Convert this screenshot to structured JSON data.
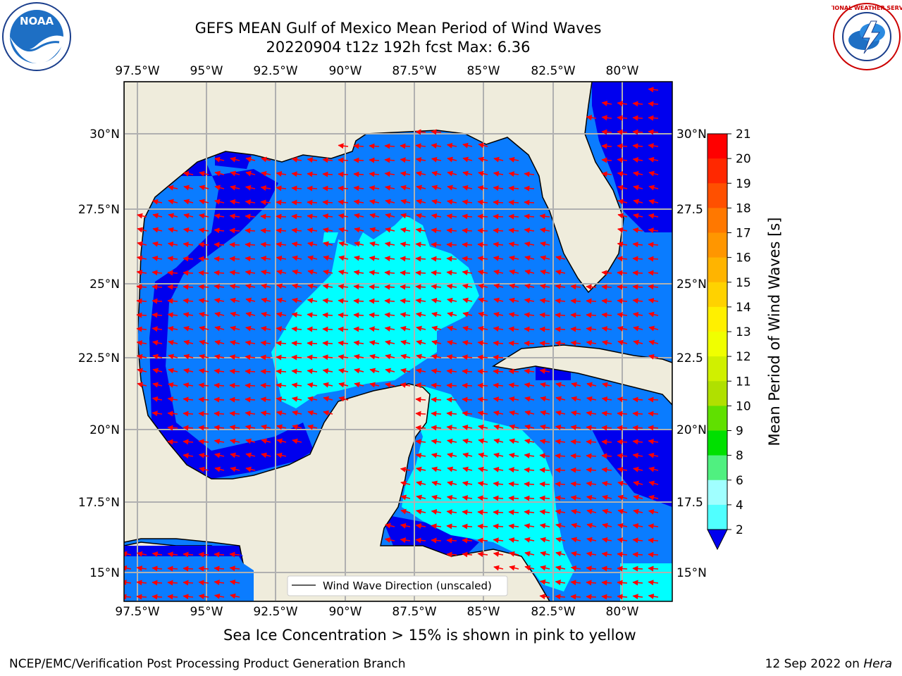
{
  "title": {
    "line1": "GEFS MEAN Gulf of Mexico Mean Period of Wind Waves",
    "line2": "20220904 t12z 192h fcst   Max: 6.36"
  },
  "map": {
    "lon_labels": [
      "97.5°W",
      "95°W",
      "92.5°W",
      "90°W",
      "87.5°W",
      "85°W",
      "82.5°W",
      "80°W"
    ],
    "lat_labels": [
      "30°N",
      "27.5°N",
      "25°N",
      "22.5°N",
      "20°N",
      "17.5°N",
      "15°N"
    ],
    "right_lat_labels": [
      "30°N",
      "27.5",
      "25°N",
      "22.5",
      "20°N",
      "17.5",
      "15°N"
    ],
    "legend_label": "Wind Wave Direction (unscaled)",
    "land_color": "#efecdc",
    "ocean_colors": {
      "2-4": "#0a7cff",
      "4-6": "#00ffff",
      "below_2": "#0000ee"
    },
    "arrow_color": "#ff0000"
  },
  "colorbar": {
    "label": "Mean Period of Wind Waves [s]",
    "ticks": [
      "21",
      "20",
      "19",
      "18",
      "17",
      "16",
      "15",
      "14",
      "13",
      "12",
      "11",
      "10",
      "9",
      "8",
      "6",
      "4",
      "2"
    ],
    "colors": [
      "#ff0000",
      "#ff2800",
      "#ff5000",
      "#ff7800",
      "#ff9600",
      "#ffb400",
      "#ffd200",
      "#fff000",
      "#f0ff00",
      "#d0f000",
      "#b0e000",
      "#60e000",
      "#00e000",
      "#50f080",
      "#a0ffff",
      "#50ffff",
      "#00ffff",
      "#0a7cff"
    ],
    "under_color": "#0000ee"
  },
  "footer": {
    "sea_ice_note": "Sea Ice Concentration > 15% is shown in pink to yellow",
    "left": "NCEP/EMC/Verification Post Processing Product Generation Branch",
    "date": "12 Sep 2022 on ",
    "host": "Hera"
  },
  "logos": {
    "left_text": "NOAA",
    "right_text": "NATIONAL WEATHER SERVICE"
  }
}
